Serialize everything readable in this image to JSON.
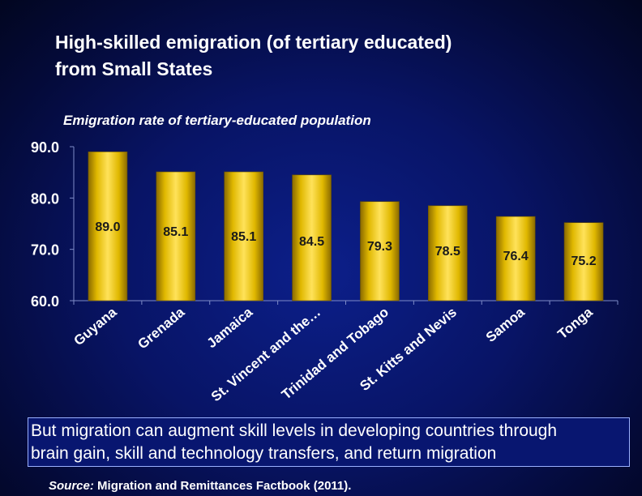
{
  "title": {
    "line1": "High-skilled emigration (of tertiary educated)",
    "line2": "from Small States"
  },
  "chart_data": {
    "type": "bar",
    "title": "Emigration rate of tertiary-educated population",
    "categories": [
      "Guyana",
      "Grenada",
      "Jamaica",
      "St. Vincent and the…",
      "Trinidad and Tobago",
      "St. Kitts and Nevis",
      "Samoa",
      "Tonga"
    ],
    "values": [
      89.0,
      85.1,
      85.1,
      84.5,
      79.3,
      78.5,
      76.4,
      75.2
    ],
    "data_labels": [
      "89.0",
      "85.1",
      "85.1",
      "84.5",
      "79.3",
      "78.5",
      "76.4",
      "75.2"
    ],
    "ylim": [
      60.0,
      90.0
    ],
    "yticks": [
      "60.0",
      "70.0",
      "80.0",
      "90.0"
    ],
    "xlabel": "",
    "ylabel": "",
    "bar_color": "#e0b800"
  },
  "callout": {
    "line1": "But migration can augment skill levels in developing countries through",
    "line2": "brain gain, skill and technology transfers, and return migration"
  },
  "source": {
    "label": "Source:",
    "text": " Migration and Remittances Factbook (2011)."
  }
}
